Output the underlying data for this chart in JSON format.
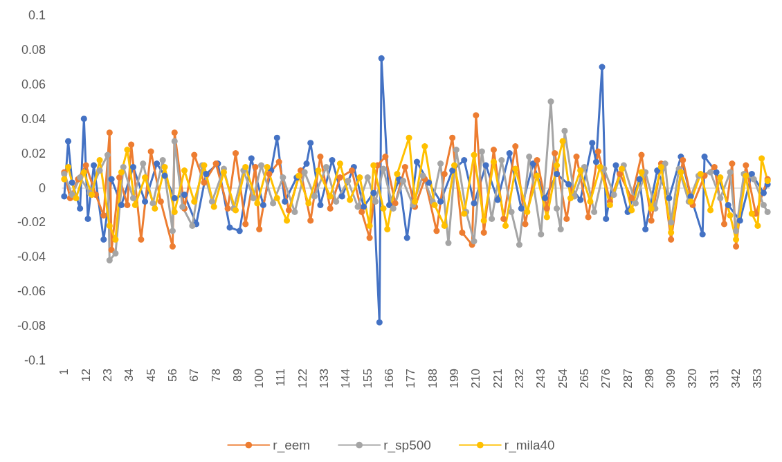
{
  "chart_data": {
    "type": "line",
    "marker": "circle",
    "line_style": "solid",
    "legend": "bottom",
    "xlim": [
      0,
      359
    ],
    "xticks": [
      1,
      12,
      23,
      34,
      45,
      56,
      67,
      78,
      89,
      100,
      111,
      122,
      133,
      144,
      155,
      166,
      177,
      188,
      199,
      210,
      221,
      232,
      243,
      254,
      265,
      276,
      287,
      298,
      309,
      320,
      331,
      342,
      353
    ],
    "ylim": [
      -0.1,
      0.1
    ],
    "yticks": [
      -0.1,
      -0.08,
      -0.06,
      -0.04,
      -0.02,
      0,
      0.02,
      0.04,
      0.06,
      0.08,
      0.1
    ],
    "series": [
      {
        "color": "#4472c4",
        "x": [
          1,
          3,
          5,
          9,
          11,
          13,
          16,
          21,
          25,
          30,
          36,
          42,
          48,
          52,
          57,
          62,
          68,
          73,
          79,
          85,
          90,
          96,
          102,
          106,
          109,
          113,
          119,
          124,
          126,
          131,
          137,
          142,
          148,
          153,
          158,
          161,
          162,
          166,
          171,
          175,
          180,
          186,
          192,
          198,
          204,
          209,
          215,
          221,
          227,
          233,
          239,
          245,
          251,
          257,
          263,
          269,
          271,
          274,
          276,
          281,
          287,
          293,
          296,
          302,
          308,
          314,
          319,
          325,
          326,
          332,
          338,
          344,
          350,
          356,
          358
        ],
        "values": [
          -0.005,
          0.027,
          0.003,
          -0.012,
          0.04,
          -0.018,
          0.013,
          -0.03,
          0.005,
          -0.01,
          0.012,
          -0.008,
          0.014,
          0.007,
          -0.006,
          -0.004,
          -0.021,
          0.008,
          0.014,
          -0.023,
          -0.025,
          0.017,
          -0.01,
          0.01,
          0.029,
          -0.008,
          0.006,
          0.014,
          0.026,
          -0.01,
          0.016,
          -0.005,
          0.012,
          -0.011,
          -0.003,
          -0.078,
          0.075,
          -0.01,
          0.005,
          -0.029,
          0.015,
          0.003,
          -0.008,
          0.01,
          0.016,
          -0.009,
          0.013,
          -0.007,
          0.02,
          -0.012,
          0.014,
          -0.006,
          0.008,
          0.002,
          -0.007,
          0.026,
          0.015,
          0.07,
          -0.018,
          0.013,
          -0.014,
          0.005,
          -0.024,
          0.01,
          -0.006,
          0.018,
          -0.005,
          -0.027,
          0.018,
          0.009,
          -0.01,
          -0.019,
          0.008,
          -0.003,
          0.002
        ]
      },
      {
        "name": "r_eem",
        "color": "#ed7d31",
        "x": [
          1,
          4,
          8,
          12,
          17,
          21,
          24,
          25,
          29,
          33,
          35,
          40,
          45,
          50,
          56,
          57,
          62,
          67,
          72,
          78,
          84,
          88,
          93,
          98,
          100,
          105,
          110,
          115,
          121,
          126,
          131,
          136,
          141,
          147,
          152,
          156,
          160,
          164,
          169,
          174,
          179,
          184,
          190,
          194,
          198,
          203,
          208,
          210,
          214,
          219,
          224,
          230,
          235,
          241,
          246,
          250,
          256,
          261,
          267,
          272,
          278,
          283,
          289,
          294,
          299,
          304,
          309,
          315,
          320,
          326,
          331,
          336,
          340,
          342,
          347,
          352,
          358
        ],
        "values": [
          0.009,
          -0.006,
          0.005,
          0.013,
          -0.004,
          -0.016,
          0.032,
          -0.036,
          0.006,
          -0.01,
          0.025,
          -0.03,
          0.021,
          -0.008,
          -0.034,
          0.032,
          -0.012,
          0.019,
          0.003,
          0.014,
          -0.012,
          0.02,
          -0.021,
          0.012,
          -0.024,
          0.008,
          0.015,
          -0.013,
          0.01,
          -0.019,
          0.018,
          -0.012,
          0.006,
          0.01,
          -0.014,
          -0.029,
          0.013,
          0.018,
          -0.009,
          0.012,
          -0.011,
          0.005,
          -0.025,
          0.008,
          0.029,
          -0.026,
          -0.033,
          0.042,
          -0.026,
          0.022,
          -0.018,
          0.024,
          -0.021,
          0.016,
          -0.012,
          0.02,
          -0.018,
          0.018,
          -0.017,
          0.021,
          -0.008,
          0.008,
          -0.006,
          0.019,
          -0.019,
          0.014,
          -0.03,
          0.016,
          -0.01,
          0.007,
          0.012,
          -0.021,
          0.014,
          -0.034,
          0.013,
          -0.015,
          0.005
        ]
      },
      {
        "name": "r_sp500",
        "color": "#a5a5a5",
        "x": [
          1,
          5,
          9,
          14,
          19,
          23,
          24,
          27,
          31,
          36,
          41,
          46,
          51,
          56,
          57,
          61,
          66,
          71,
          76,
          82,
          87,
          92,
          97,
          101,
          107,
          112,
          118,
          123,
          128,
          134,
          139,
          145,
          150,
          155,
          159,
          163,
          168,
          173,
          178,
          183,
          188,
          192,
          196,
          200,
          205,
          209,
          213,
          218,
          223,
          228,
          232,
          237,
          243,
          248,
          251,
          253,
          255,
          260,
          265,
          270,
          275,
          280,
          285,
          291,
          296,
          301,
          306,
          309,
          313,
          318,
          323,
          329,
          334,
          339,
          342,
          346,
          351,
          356,
          358
        ],
        "values": [
          0.008,
          -0.004,
          0.006,
          -0.003,
          0.01,
          0.019,
          -0.042,
          -0.038,
          0.012,
          -0.006,
          0.014,
          -0.009,
          0.016,
          -0.025,
          0.027,
          -0.011,
          -0.022,
          0.013,
          -0.008,
          0.011,
          -0.012,
          0.01,
          -0.006,
          0.013,
          -0.009,
          0.006,
          -0.014,
          0.009,
          -0.005,
          0.012,
          -0.008,
          0.004,
          -0.011,
          0.006,
          -0.008,
          0.011,
          -0.012,
          0.004,
          -0.01,
          0.007,
          -0.008,
          0.014,
          -0.032,
          0.022,
          -0.014,
          -0.031,
          0.021,
          -0.018,
          0.016,
          -0.014,
          -0.033,
          0.018,
          -0.027,
          0.05,
          -0.012,
          -0.024,
          0.033,
          -0.005,
          0.012,
          -0.014,
          0.011,
          -0.004,
          0.013,
          -0.009,
          0.009,
          -0.012,
          0.014,
          -0.02,
          0.011,
          -0.008,
          0.007,
          0.009,
          -0.006,
          0.009,
          -0.025,
          0.008,
          0.005,
          -0.01,
          -0.014
        ]
      },
      {
        "name": "r_mila40",
        "color": "#ffc000",
        "x": [
          1,
          3,
          7,
          11,
          15,
          19,
          24,
          27,
          30,
          33,
          37,
          42,
          47,
          52,
          57,
          62,
          67,
          72,
          77,
          82,
          88,
          93,
          99,
          104,
          109,
          114,
          120,
          125,
          130,
          136,
          141,
          146,
          151,
          156,
          158,
          163,
          165,
          170,
          176,
          179,
          184,
          189,
          194,
          199,
          204,
          209,
          214,
          219,
          225,
          230,
          236,
          241,
          246,
          251,
          254,
          258,
          263,
          268,
          273,
          278,
          284,
          289,
          294,
          299,
          304,
          309,
          314,
          319,
          324,
          329,
          334,
          339,
          342,
          347,
          350,
          353,
          355,
          358
        ],
        "values": [
          0.005,
          0.012,
          -0.006,
          0.009,
          -0.004,
          0.016,
          -0.022,
          -0.03,
          0.009,
          0.022,
          -0.01,
          0.006,
          -0.012,
          0.012,
          -0.014,
          0.01,
          -0.008,
          0.013,
          -0.011,
          0.009,
          -0.013,
          0.012,
          -0.009,
          0.012,
          -0.006,
          -0.019,
          0.007,
          -0.009,
          0.01,
          -0.005,
          0.014,
          -0.007,
          0.006,
          -0.022,
          0.013,
          -0.012,
          -0.024,
          0.008,
          0.029,
          -0.008,
          0.024,
          -0.01,
          -0.022,
          0.013,
          -0.015,
          0.019,
          -0.019,
          0.015,
          -0.022,
          0.011,
          -0.014,
          0.007,
          -0.017,
          0.013,
          0.027,
          -0.006,
          0.01,
          -0.008,
          0.012,
          -0.01,
          0.011,
          -0.013,
          0.009,
          -0.012,
          0.012,
          -0.026,
          0.009,
          -0.008,
          0.008,
          -0.013,
          0.006,
          -0.016,
          -0.03,
          0.007,
          -0.015,
          -0.022,
          0.017,
          0.004
        ]
      }
    ]
  }
}
